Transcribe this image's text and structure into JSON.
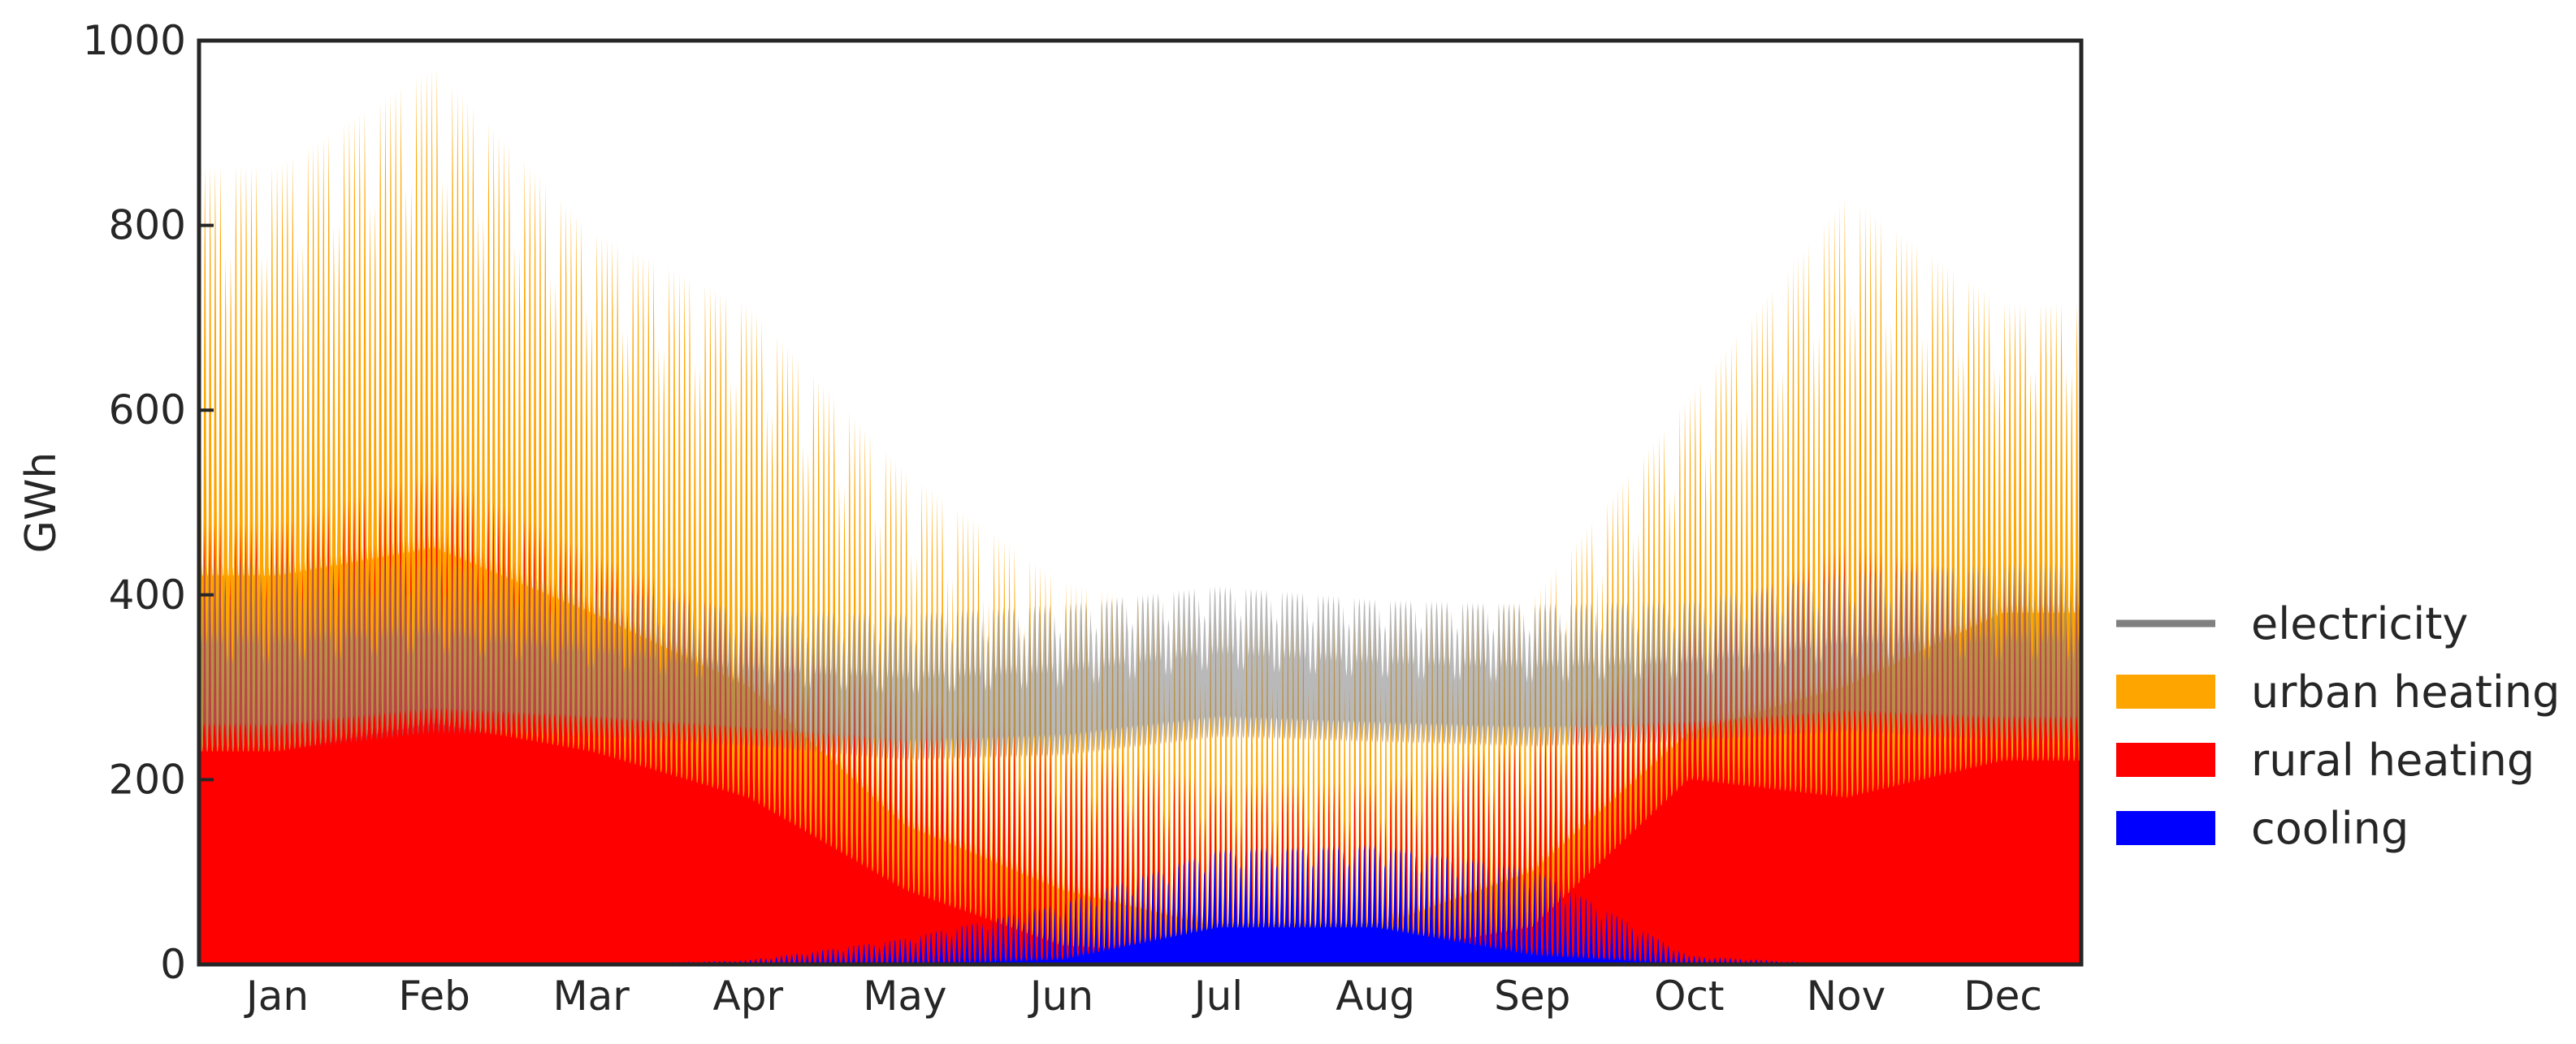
{
  "chart_data": {
    "type": "area",
    "ylabel": "GWh",
    "ylim": [
      0,
      1000
    ],
    "yticks": [
      "0",
      "200",
      "400",
      "600",
      "800",
      "1000"
    ],
    "months": [
      "Jan",
      "Feb",
      "Mar",
      "Apr",
      "May",
      "Jun",
      "Jul",
      "Aug",
      "Sep",
      "Oct",
      "Nov",
      "Dec"
    ],
    "legend_position": "right, lower half",
    "grid": false,
    "colors": {
      "electricity": "#808080",
      "urban heating": "#ffa500",
      "rural heating": "#ff0000",
      "cooling": "#0000ff",
      "overlap": "#800000"
    },
    "legend": [
      "electricity",
      "urban heating",
      "rural heating",
      "cooling"
    ],
    "series": [
      {
        "name": "electricity",
        "kind": "line",
        "approx_weekly_band_gwh": {
          "x": [
            "Jan",
            "Feb",
            "Mar",
            "Apr",
            "May",
            "Jun",
            "Jul",
            "Aug",
            "Sep",
            "Oct",
            "Nov",
            "Dec"
          ],
          "min": [
            230,
            250,
            245,
            235,
            220,
            225,
            245,
            240,
            235,
            240,
            250,
            240
          ],
          "max": [
            440,
            440,
            410,
            385,
            380,
            390,
            410,
            395,
            390,
            395,
            425,
            435
          ]
        }
      },
      {
        "name": "urban heating",
        "kind": "area",
        "approx_weekly_band_gwh": {
          "x": [
            "Jan",
            "Feb",
            "Mar",
            "Apr",
            "May",
            "Jun",
            "Jul",
            "Aug",
            "Sep",
            "Oct",
            "Nov",
            "Dec"
          ],
          "min": [
            420,
            450,
            380,
            300,
            150,
            80,
            40,
            40,
            100,
            250,
            300,
            380
          ],
          "max": [
            870,
            980,
            800,
            720,
            540,
            420,
            380,
            380,
            400,
            620,
            840,
            720
          ]
        }
      },
      {
        "name": "rural heating",
        "kind": "area",
        "approx_weekly_band_gwh": {
          "x": [
            "Jan",
            "Feb",
            "Mar",
            "Apr",
            "May",
            "Jun",
            "Jul",
            "Aug",
            "Sep",
            "Oct",
            "Nov",
            "Dec"
          ],
          "min": [
            230,
            260,
            230,
            180,
            80,
            20,
            10,
            10,
            40,
            200,
            180,
            220
          ],
          "max": [
            480,
            540,
            450,
            380,
            300,
            240,
            200,
            200,
            250,
            370,
            460,
            420
          ]
        }
      },
      {
        "name": "cooling",
        "kind": "area",
        "approx_weekly_band_gwh": {
          "x": [
            "Jan",
            "Feb",
            "Mar",
            "Apr",
            "May",
            "Jun",
            "Jul",
            "Aug",
            "Sep",
            "Oct",
            "Nov",
            "Dec"
          ],
          "min": [
            0,
            0,
            0,
            0,
            0,
            5,
            40,
            40,
            10,
            0,
            0,
            0
          ],
          "max": [
            0,
            0,
            0,
            5,
            30,
            70,
            130,
            135,
            110,
            10,
            0,
            0
          ]
        }
      }
    ]
  }
}
